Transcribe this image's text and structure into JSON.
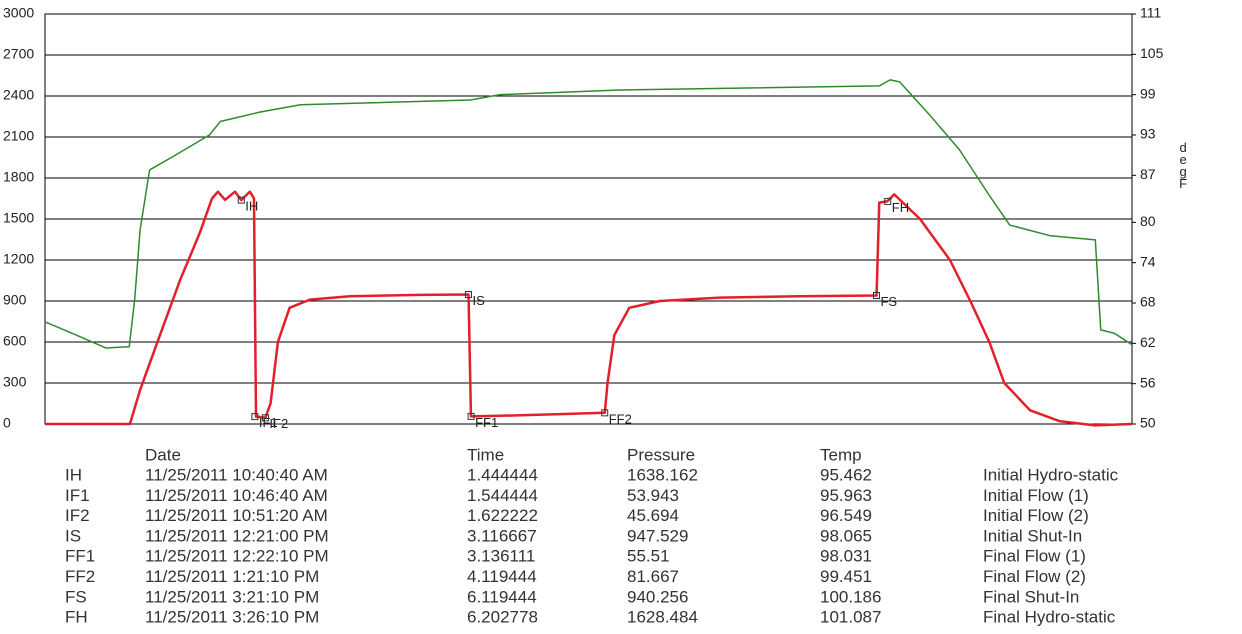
{
  "chart_data": {
    "type": "line",
    "y2label": "degF",
    "xlim": [
      0,
      8
    ],
    "ylim": [
      0,
      3000
    ],
    "yticks": [
      0,
      300,
      600,
      900,
      1200,
      1500,
      1800,
      2100,
      2400,
      2700,
      3000
    ],
    "y2lim": [
      50,
      111
    ],
    "y2ticks": [
      50,
      56,
      62,
      68,
      74,
      80,
      87,
      93,
      99,
      105,
      111
    ],
    "grid": true,
    "series": [
      {
        "name": "Pressure",
        "color": "#e3202a",
        "x": [
          0,
          0.625,
          0.7,
          0.846,
          0.993,
          1.14,
          1.229,
          1.273,
          1.325,
          1.398,
          1.444,
          1.508,
          1.538,
          1.553,
          1.59,
          1.622,
          1.66,
          1.714,
          1.8,
          1.95,
          2.244,
          2.76,
          3.117,
          3.135,
          3.348,
          3.79,
          4.12,
          4.14,
          4.19,
          4.3,
          4.525,
          4.967,
          5.556,
          6.12,
          6.14,
          6.2,
          6.25,
          6.44,
          6.66,
          6.81,
          6.95,
          7.06,
          7.25,
          7.47,
          7.73,
          8.0
        ],
        "values": [
          0,
          0,
          250,
          650,
          1050,
          1400,
          1650,
          1700,
          1640,
          1700,
          1638,
          1700,
          1650,
          54,
          50,
          46,
          150,
          600,
          850,
          910,
          935,
          945,
          948,
          56,
          60,
          72,
          82,
          300,
          650,
          850,
          900,
          925,
          935,
          940,
          1620,
          1630,
          1680,
          1500,
          1200,
          900,
          600,
          300,
          100,
          20,
          -10,
          0
        ]
      },
      {
        "name": "Temp",
        "color": "#2e8b2e",
        "axis": "y2",
        "x": [
          0,
          0.2,
          0.45,
          0.62,
          0.66,
          0.7,
          0.77,
          0.96,
          1.21,
          1.29,
          1.58,
          1.88,
          3.13,
          3.35,
          4.23,
          6.14,
          6.22,
          6.29,
          6.51,
          6.73,
          6.95,
          7.1,
          7.4,
          7.73,
          7.77,
          7.87,
          8.0
        ],
        "values": [
          65.2,
          63.5,
          61.3,
          61.5,
          68.5,
          78.9,
          87.8,
          90,
          93,
          95,
          96.4,
          97.5,
          98.2,
          99,
          99.7,
          100.3,
          101.2,
          100.9,
          96,
          90.8,
          84,
          79.6,
          78,
          77.4,
          64,
          63.5,
          61.8
        ]
      }
    ]
  },
  "table": {
    "header": [
      "Date",
      "Time",
      "Pressure",
      "Temp"
    ],
    "rows": [
      [
        "IH",
        "11/25/2011 10:40:40 AM",
        1.444444,
        1638.162,
        95.462,
        "Initial Hydro-static"
      ],
      [
        "IF1",
        "11/25/2011 10:46:40 AM",
        1.544444,
        53.943,
        95.963,
        "Initial Flow (1)"
      ],
      [
        "IF2",
        "11/25/2011 10:51:20 AM",
        1.622222,
        45.694,
        96.549,
        "Initial Flow (2)"
      ],
      [
        "IS",
        "11/25/2011 12:21:00 PM",
        3.116667,
        947.529,
        98.065,
        "Initial Shut-In"
      ],
      [
        "FF1",
        "11/25/2011 12:22:10 PM",
        3.136111,
        55.51,
        98.031,
        "Final Flow (1)"
      ],
      [
        "FF2",
        "11/25/2011 1:21:10 PM",
        4.119444,
        81.667,
        99.451,
        "Final Flow (2)"
      ],
      [
        "FS",
        "11/25/2011 3:21:10 PM",
        6.119444,
        940.256,
        100.186,
        "Final Shut-In"
      ],
      [
        "FH",
        "11/25/2011 3:26:10 PM",
        6.202778,
        1628.484,
        101.087,
        "Final Hydro-static"
      ]
    ]
  }
}
